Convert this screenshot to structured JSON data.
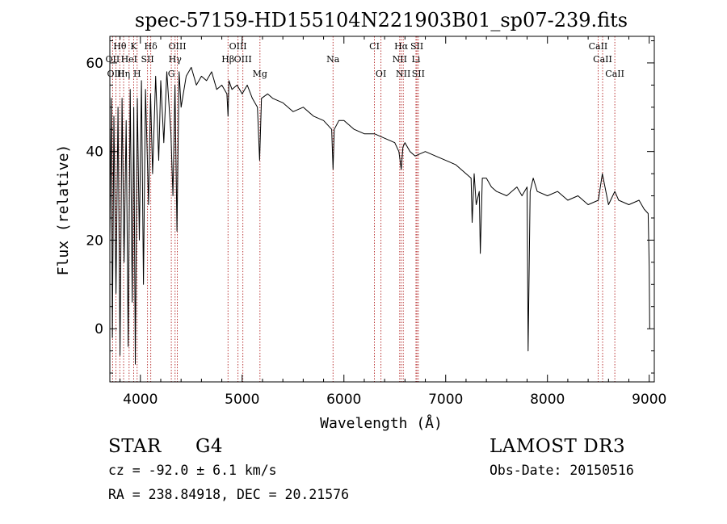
{
  "chart_data": {
    "type": "line",
    "title": "spec-57159-HD155104N221903B01_sp07-239.fits",
    "xlabel": "Wavelength (Å)",
    "ylabel": "Flux (relative)",
    "xlim": [
      3700,
      9050
    ],
    "ylim": [
      -12,
      66
    ],
    "x_ticks": [
      4000,
      5000,
      6000,
      7000,
      8000,
      9000
    ],
    "x_tick_labels": [
      "4000",
      "5000",
      "6000",
      "7000",
      "8000",
      "9000"
    ],
    "y_ticks": [
      0,
      20,
      40,
      60
    ],
    "y_tick_labels": [
      "0",
      "20",
      "40",
      "60"
    ],
    "series": [
      {
        "name": "flux",
        "x": [
          3700,
          3715,
          3725,
          3740,
          3760,
          3780,
          3800,
          3820,
          3840,
          3860,
          3880,
          3900,
          3920,
          3935,
          3950,
          3970,
          3990,
          4010,
          4030,
          4050,
          4080,
          4100,
          4120,
          4150,
          4180,
          4200,
          4230,
          4260,
          4300,
          4320,
          4340,
          4360,
          4380,
          4400,
          4450,
          4500,
          4550,
          4600,
          4650,
          4700,
          4750,
          4800,
          4850,
          4861,
          4870,
          4900,
          4950,
          5000,
          5050,
          5100,
          5150,
          5172,
          5190,
          5250,
          5300,
          5400,
          5500,
          5600,
          5700,
          5800,
          5880,
          5893,
          5905,
          5950,
          6000,
          6100,
          6200,
          6300,
          6400,
          6500,
          6540,
          6563,
          6580,
          6600,
          6650,
          6700,
          6800,
          6900,
          7000,
          7100,
          7200,
          7250,
          7260,
          7280,
          7300,
          7330,
          7340,
          7360,
          7400,
          7450,
          7500,
          7600,
          7700,
          7750,
          7800,
          7810,
          7830,
          7860,
          7900,
          8000,
          8100,
          8200,
          8300,
          8400,
          8500,
          8540,
          8600,
          8662,
          8700,
          8800,
          8900,
          8950,
          8990,
          9000,
          9005
        ],
        "values": [
          20,
          52,
          -2,
          48,
          8,
          50,
          -6,
          52,
          15,
          47,
          -4,
          54,
          6,
          50,
          -8,
          52,
          20,
          56,
          10,
          54,
          28,
          53,
          35,
          57,
          38,
          56,
          42,
          58,
          44,
          30,
          55,
          22,
          58,
          50,
          57,
          59,
          55,
          57,
          56,
          58,
          54,
          55,
          53,
          48,
          56,
          54,
          55,
          53,
          55,
          52,
          50,
          38,
          52,
          53,
          52,
          51,
          49,
          50,
          48,
          47,
          45,
          36,
          45,
          47,
          47,
          45,
          44,
          44,
          43,
          42,
          40,
          36,
          41,
          42,
          40,
          39,
          40,
          39,
          38,
          37,
          35,
          34,
          24,
          35,
          28,
          31,
          17,
          34,
          34,
          32,
          31,
          30,
          32,
          30,
          32,
          -5,
          31,
          34,
          31,
          30,
          31,
          29,
          30,
          28,
          29,
          35,
          28,
          31,
          29,
          28,
          29,
          27,
          26,
          14,
          0
        ]
      }
    ],
    "lines_upper": [
      {
        "label": "Hθ",
        "x": 3798
      },
      {
        "label": "K",
        "x": 3934
      },
      {
        "label": "Hδ",
        "x": 4102
      },
      {
        "label": "OIII",
        "x": 4363
      },
      {
        "label": "OIII",
        "x": 4959
      },
      {
        "label": "CI",
        "x": 6300
      },
      {
        "label": "Hα",
        "x": 6563
      },
      {
        "label": "SII",
        "x": 6717
      },
      {
        "label": "CaII",
        "x": 8498
      }
    ],
    "lines_middle": [
      {
        "label": "OII",
        "x": 3727
      },
      {
        "label": "HeI",
        "x": 3889
      },
      {
        "label": "SII",
        "x": 4070
      },
      {
        "label": "Hγ",
        "x": 4341
      },
      {
        "label": "Hβ",
        "x": 4861
      },
      {
        "label": "OIII",
        "x": 5007
      },
      {
        "label": "Na",
        "x": 5893
      },
      {
        "label": "NII",
        "x": 6548
      },
      {
        "label": "Li",
        "x": 6708
      },
      {
        "label": "CaII",
        "x": 8542
      }
    ],
    "lines_lower": [
      {
        "label": "OIII",
        "x": 3760
      },
      {
        "label": "Hη",
        "x": 3835
      },
      {
        "label": "H",
        "x": 3968
      },
      {
        "label": "G",
        "x": 4304
      },
      {
        "label": "Mg",
        "x": 5175
      },
      {
        "label": "OI",
        "x": 6364
      },
      {
        "label": "NII",
        "x": 6583
      },
      {
        "label": "SII",
        "x": 6731
      },
      {
        "label": "CaII",
        "x": 8662
      }
    ]
  },
  "info": {
    "object_class": "STAR",
    "subclass": "G4",
    "survey": "LAMOST DR3",
    "cz": "cz = -92.0 ± 6.1 km/s",
    "obs_date": "Obs-Date: 20150516",
    "coords": "RA = 238.84918, DEC =  20.21576"
  },
  "colors": {
    "axis": "#000000",
    "spectrum": "#000000",
    "line_marker": "#b22222",
    "background": "#ffffff"
  }
}
